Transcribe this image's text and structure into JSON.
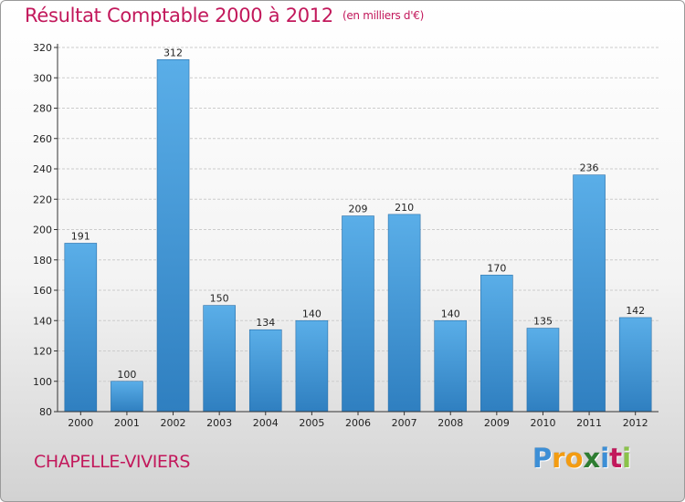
{
  "chart_data": {
    "type": "bar",
    "title": "Résultat Comptable 2000 à 2012",
    "unit": "(en milliers d'€)",
    "categories": [
      "2000",
      "2001",
      "2002",
      "2003",
      "2004",
      "2005",
      "2006",
      "2007",
      "2008",
      "2009",
      "2010",
      "2011",
      "2012"
    ],
    "values": [
      191,
      100,
      312,
      150,
      134,
      140,
      209,
      210,
      140,
      170,
      135,
      236,
      142
    ],
    "ylim": [
      80,
      320
    ],
    "yticks": [
      80,
      100,
      120,
      140,
      160,
      180,
      200,
      220,
      240,
      260,
      280,
      300,
      320
    ],
    "xlabel": "",
    "ylabel": "",
    "grid": true,
    "bar_color_top": "#5aaee8",
    "bar_color_bottom": "#2f7fc0"
  },
  "footer": {
    "city": "CHAPELLE-VIVIERS",
    "logo_letters": [
      "P",
      "r",
      "o",
      "x",
      "i",
      "t",
      "i"
    ],
    "logo_colors": [
      "#3d8fd6",
      "#f39c12",
      "#f39c12",
      "#2e7d32",
      "#3d8fd6",
      "#c2185b",
      "#8bc34a"
    ]
  },
  "colors": {
    "title": "#c2185b",
    "gridline": "#cccccc",
    "axis": "#333333"
  }
}
